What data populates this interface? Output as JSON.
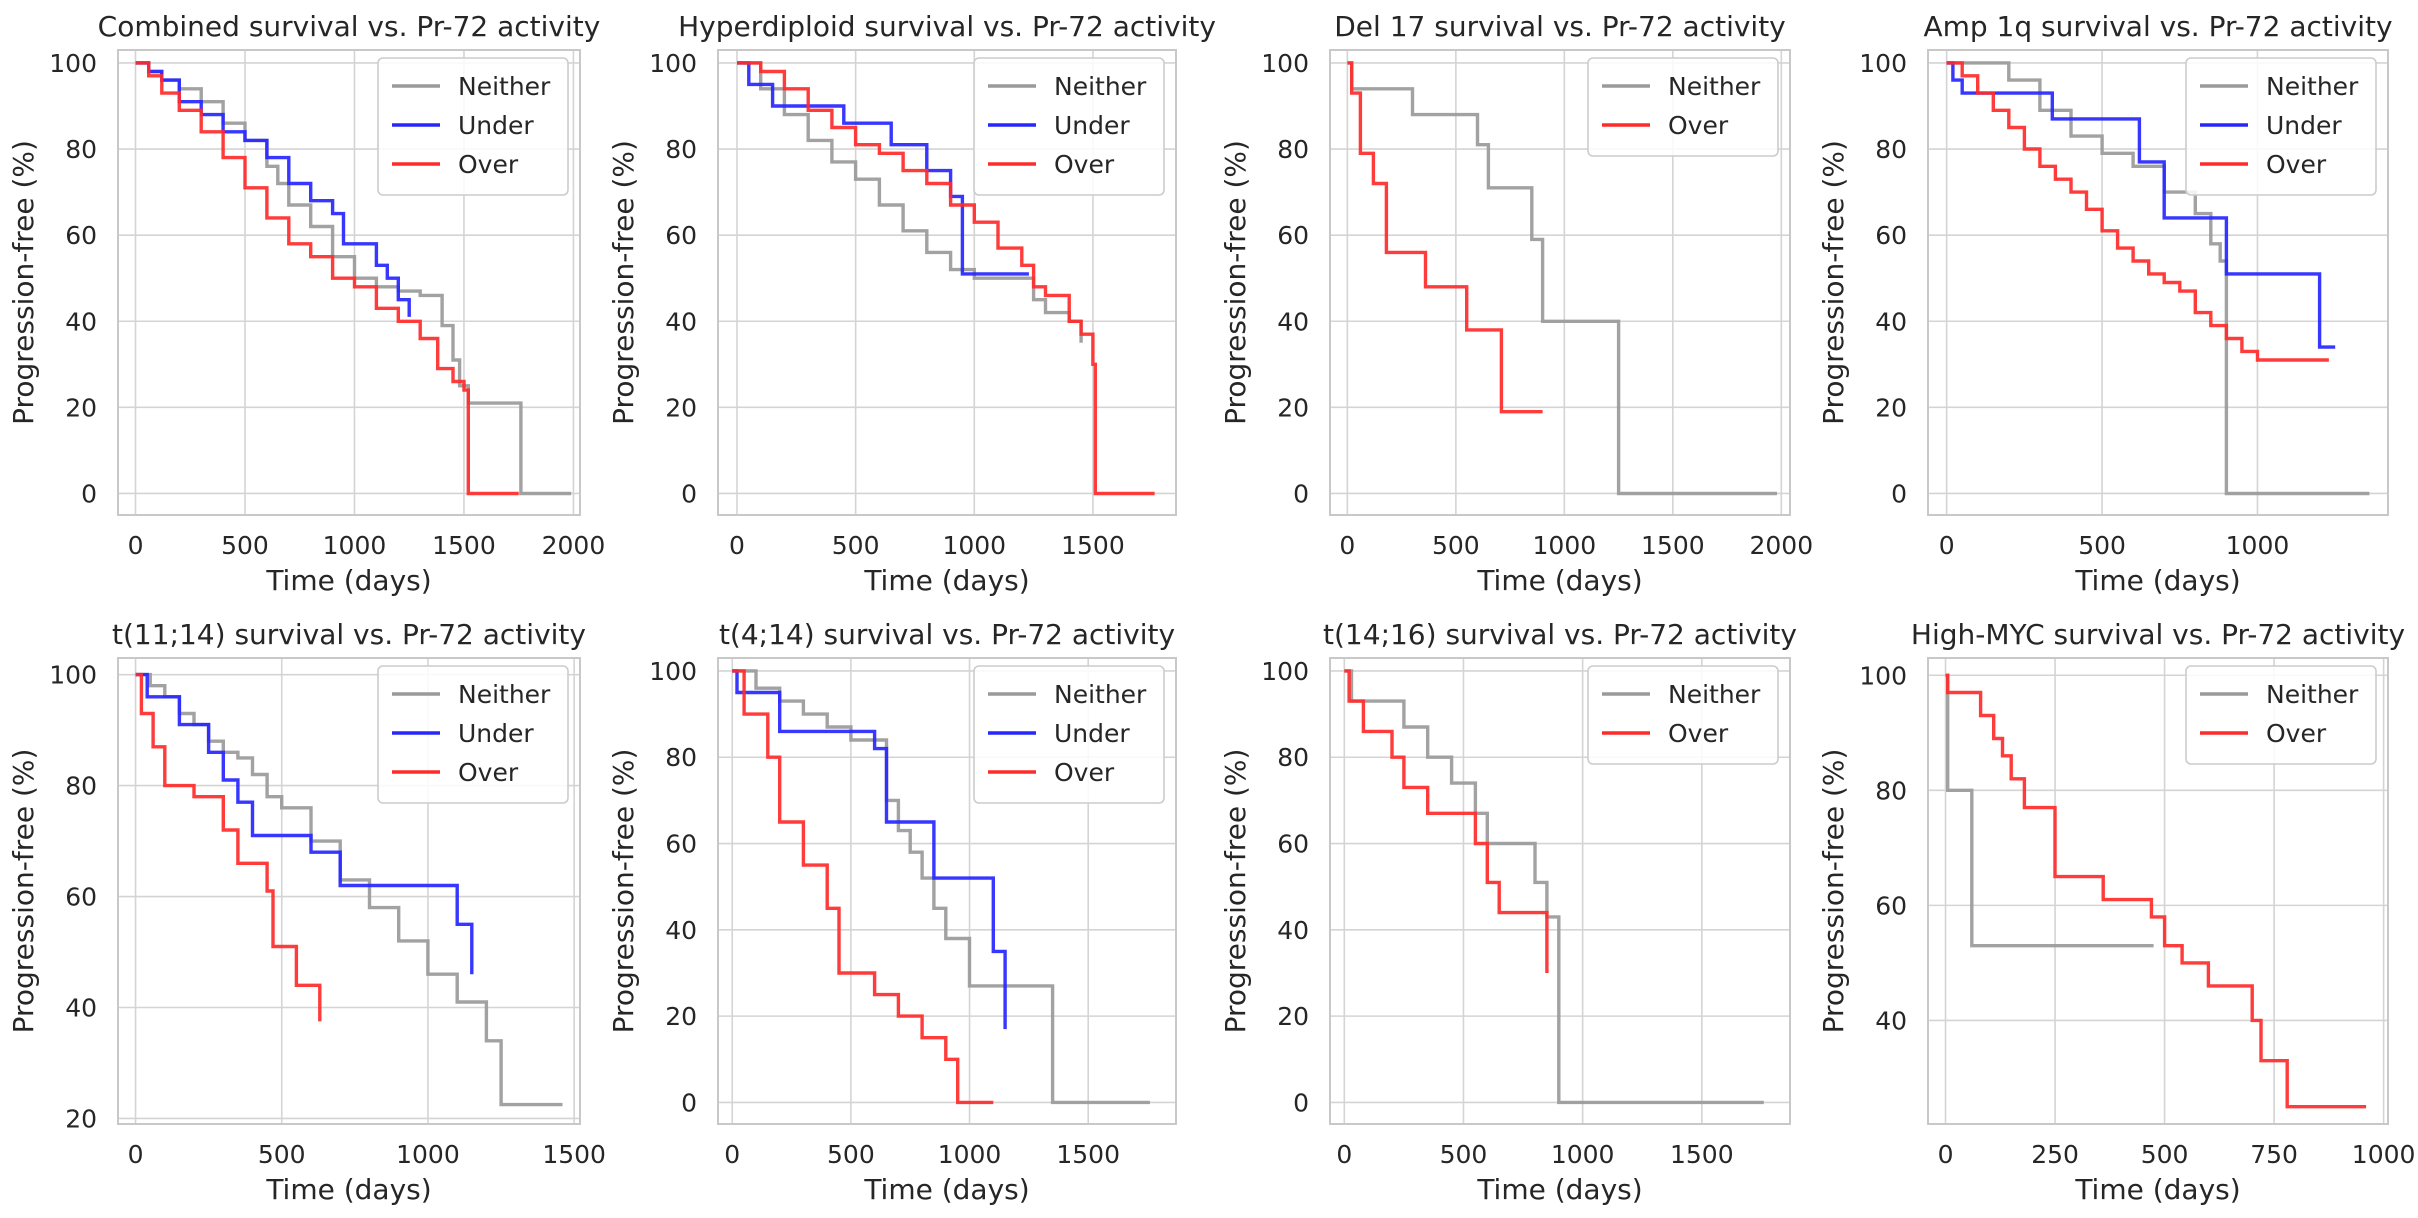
{
  "figure": {
    "colors": {
      "Neither": "#9a9a9a",
      "Under": "#2626ff",
      "Over": "#ff2b2b",
      "grid": "#d4d4d4",
      "frame": "#c8c8c8"
    }
  },
  "chart_data": [
    {
      "type": "line",
      "step": true,
      "title": "Combined survival vs. Pr-72 activity",
      "xlabel": "Time (days)",
      "ylabel": "Progression-free (%)",
      "xlim": [
        -80,
        2030
      ],
      "ylim": [
        -5,
        103
      ],
      "xticks": [
        0,
        500,
        1000,
        1500,
        2000
      ],
      "yticks": [
        0,
        20,
        40,
        60,
        80,
        100
      ],
      "legend": [
        "Neither",
        "Under",
        "Over"
      ],
      "series": [
        {
          "name": "Neither",
          "x": [
            0,
            60,
            120,
            200,
            300,
            400,
            500,
            600,
            650,
            700,
            800,
            900,
            1000,
            1100,
            1200,
            1300,
            1400,
            1450,
            1480,
            1520,
            1760,
            1760,
            1990
          ],
          "y": [
            100,
            98,
            96,
            94,
            91,
            86,
            82,
            76,
            72,
            67,
            62,
            55,
            50,
            48,
            47,
            46,
            39,
            31,
            25,
            21,
            21,
            0,
            0
          ]
        },
        {
          "name": "Under",
          "x": [
            0,
            60,
            120,
            200,
            300,
            400,
            500,
            600,
            700,
            800,
            900,
            950,
            1100,
            1150,
            1200,
            1250
          ],
          "y": [
            100,
            98,
            96,
            91,
            88,
            84,
            82,
            78,
            72,
            68,
            65,
            58,
            53,
            50,
            45,
            41
          ]
        },
        {
          "name": "Over",
          "x": [
            0,
            60,
            120,
            200,
            300,
            400,
            500,
            600,
            700,
            800,
            900,
            1000,
            1100,
            1200,
            1300,
            1380,
            1450,
            1500,
            1520,
            1520,
            1750
          ],
          "y": [
            100,
            97,
            93,
            89,
            84,
            78,
            71,
            64,
            58,
            55,
            50,
            48,
            43,
            40,
            36,
            29,
            26,
            24,
            24,
            0,
            0
          ]
        }
      ]
    },
    {
      "type": "line",
      "step": true,
      "title": "Hyperdiploid survival vs. Pr-72 activity",
      "xlabel": "Time (days)",
      "ylabel": "Progression-free (%)",
      "xlim": [
        -80,
        1850
      ],
      "ylim": [
        -5,
        103
      ],
      "xticks": [
        0,
        500,
        1000,
        1500
      ],
      "yticks": [
        0,
        20,
        40,
        60,
        80,
        100
      ],
      "legend": [
        "Neither",
        "Under",
        "Over"
      ],
      "series": [
        {
          "name": "Neither",
          "x": [
            0,
            100,
            200,
            300,
            400,
            500,
            600,
            700,
            800,
            900,
            1000,
            1100,
            1200,
            1250,
            1300,
            1400,
            1450
          ],
          "y": [
            100,
            94,
            88,
            82,
            77,
            73,
            67,
            61,
            56,
            52,
            50,
            50,
            50,
            45,
            42,
            40,
            35
          ]
        },
        {
          "name": "Under",
          "x": [
            0,
            50,
            150,
            300,
            450,
            650,
            800,
            900,
            950,
            1230
          ],
          "y": [
            100,
            95,
            90,
            90,
            86,
            81,
            75,
            69,
            51,
            51
          ]
        },
        {
          "name": "Over",
          "x": [
            0,
            100,
            200,
            300,
            400,
            500,
            600,
            700,
            800,
            900,
            1000,
            1100,
            1200,
            1250,
            1300,
            1400,
            1450,
            1500,
            1510,
            1510,
            1760
          ],
          "y": [
            100,
            98,
            94,
            89,
            85,
            81,
            79,
            75,
            72,
            67,
            63,
            57,
            53,
            48,
            46,
            40,
            37,
            30,
            23,
            0,
            0
          ]
        }
      ]
    },
    {
      "type": "line",
      "step": true,
      "title": "Del 17 survival vs. Pr-72 activity",
      "xlabel": "Time (days)",
      "ylabel": "Progression-free (%)",
      "xlim": [
        -80,
        2040
      ],
      "ylim": [
        -5,
        103
      ],
      "xticks": [
        0,
        500,
        1000,
        1500,
        2000
      ],
      "yticks": [
        0,
        20,
        40,
        60,
        80,
        100
      ],
      "legend": [
        "Neither",
        "Over"
      ],
      "series": [
        {
          "name": "Neither",
          "x": [
            0,
            20,
            120,
            300,
            600,
            650,
            850,
            900,
            1250,
            1250,
            1980
          ],
          "y": [
            100,
            94,
            94,
            88,
            81,
            71,
            59,
            40,
            40,
            0,
            0
          ]
        },
        {
          "name": "Over",
          "x": [
            0,
            20,
            60,
            120,
            180,
            360,
            550,
            710,
            900
          ],
          "y": [
            100,
            93,
            79,
            72,
            56,
            48,
            38,
            19,
            19
          ]
        }
      ]
    },
    {
      "type": "line",
      "step": true,
      "title": "Amp 1q survival vs. Pr-72 activity",
      "xlabel": "Time (days)",
      "ylabel": "Progression-free (%)",
      "xlim": [
        -60,
        1420
      ],
      "ylim": [
        -5,
        103
      ],
      "xticks": [
        0,
        500,
        1000
      ],
      "yticks": [
        0,
        20,
        40,
        60,
        80,
        100
      ],
      "legend": [
        "Neither",
        "Under",
        "Over"
      ],
      "series": [
        {
          "name": "Neither",
          "x": [
            0,
            200,
            300,
            400,
            500,
            600,
            700,
            800,
            850,
            880,
            900,
            900,
            1360
          ],
          "y": [
            100,
            96,
            89,
            83,
            79,
            76,
            70,
            65,
            58,
            54,
            40,
            0,
            0
          ]
        },
        {
          "name": "Under",
          "x": [
            0,
            20,
            50,
            150,
            340,
            620,
            700,
            900,
            1200,
            1250
          ],
          "y": [
            100,
            96,
            93,
            93,
            87,
            77,
            64,
            51,
            34,
            34
          ]
        },
        {
          "name": "Over",
          "x": [
            0,
            50,
            100,
            150,
            200,
            250,
            300,
            350,
            400,
            450,
            500,
            550,
            600,
            650,
            700,
            750,
            800,
            850,
            900,
            950,
            1000,
            1230
          ],
          "y": [
            100,
            97,
            93,
            89,
            85,
            80,
            76,
            73,
            70,
            66,
            61,
            57,
            54,
            51,
            49,
            47,
            42,
            39,
            36,
            33,
            31,
            31
          ]
        }
      ]
    },
    {
      "type": "line",
      "step": true,
      "title": "t(11;14) survival vs. Pr-72 activity",
      "xlabel": "Time (days)",
      "ylabel": "Progression-free (%)",
      "xlim": [
        -60,
        1520
      ],
      "ylim": [
        19,
        103
      ],
      "xticks": [
        0,
        500,
        1000,
        1500
      ],
      "yticks": [
        20,
        40,
        60,
        80,
        100
      ],
      "legend": [
        "Neither",
        "Under",
        "Over"
      ],
      "series": [
        {
          "name": "Neither",
          "x": [
            0,
            50,
            100,
            150,
            200,
            250,
            300,
            350,
            400,
            450,
            500,
            600,
            700,
            800,
            900,
            1000,
            1100,
            1200,
            1250,
            1460
          ],
          "y": [
            100,
            98,
            96,
            93,
            91,
            88,
            86,
            85,
            82,
            78,
            76,
            70,
            63,
            58,
            52,
            46,
            41,
            34,
            22.5,
            22.5
          ]
        },
        {
          "name": "Under",
          "x": [
            0,
            40,
            150,
            250,
            300,
            350,
            400,
            500,
            600,
            700,
            1100,
            1150
          ],
          "y": [
            100,
            96,
            91,
            86,
            81,
            77,
            71,
            71,
            68,
            62,
            55,
            46
          ]
        },
        {
          "name": "Over",
          "x": [
            0,
            20,
            60,
            100,
            200,
            300,
            350,
            450,
            470,
            550,
            630
          ],
          "y": [
            100,
            93,
            87,
            80,
            78,
            72,
            66,
            61,
            51,
            44,
            37.5
          ]
        }
      ]
    },
    {
      "type": "line",
      "step": true,
      "title": "t(4;14) survival vs. Pr-72 activity",
      "xlabel": "Time (days)",
      "ylabel": "Progression-free (%)",
      "xlim": [
        -60,
        1870
      ],
      "ylim": [
        -5,
        103
      ],
      "xticks": [
        0,
        500,
        1000,
        1500
      ],
      "yticks": [
        0,
        20,
        40,
        60,
        80,
        100
      ],
      "legend": [
        "Neither",
        "Under",
        "Over"
      ],
      "series": [
        {
          "name": "Neither",
          "x": [
            0,
            100,
            200,
            300,
            400,
            500,
            600,
            650,
            700,
            750,
            800,
            850,
            900,
            1000,
            1350,
            1350,
            1760
          ],
          "y": [
            100,
            96,
            93,
            90,
            87,
            84,
            84,
            70,
            63,
            58,
            52,
            45,
            38,
            27,
            27,
            0,
            0
          ]
        },
        {
          "name": "Under",
          "x": [
            0,
            20,
            200,
            500,
            600,
            650,
            850,
            1100,
            1150
          ],
          "y": [
            100,
            95,
            86,
            86,
            82,
            65,
            52,
            35,
            17
          ]
        },
        {
          "name": "Over",
          "x": [
            0,
            50,
            150,
            200,
            300,
            400,
            450,
            600,
            700,
            800,
            900,
            950,
            1100
          ],
          "y": [
            100,
            90,
            80,
            65,
            55,
            45,
            30,
            25,
            20,
            15,
            10,
            0,
            0
          ]
        }
      ]
    },
    {
      "type": "line",
      "step": true,
      "title": "t(14;16) survival vs. Pr-72 activity",
      "xlabel": "Time (days)",
      "ylabel": "Progression-free (%)",
      "xlim": [
        -60,
        1870
      ],
      "ylim": [
        -5,
        103
      ],
      "xticks": [
        0,
        500,
        1000,
        1500
      ],
      "yticks": [
        0,
        20,
        40,
        60,
        80,
        100
      ],
      "legend": [
        "Neither",
        "Over"
      ],
      "series": [
        {
          "name": "Neither",
          "x": [
            0,
            30,
            250,
            350,
            450,
            550,
            600,
            800,
            850,
            900,
            900,
            1760
          ],
          "y": [
            100,
            93,
            87,
            80,
            74,
            67,
            60,
            51,
            43,
            0,
            0,
            0
          ]
        },
        {
          "name": "Over",
          "x": [
            0,
            20,
            80,
            200,
            250,
            350,
            550,
            600,
            650,
            850
          ],
          "y": [
            100,
            93,
            86,
            80,
            73,
            67,
            60,
            51,
            44,
            30
          ]
        }
      ]
    },
    {
      "type": "line",
      "step": true,
      "title": "High-MYC survival vs. Pr-72 activity",
      "xlabel": "Time (days)",
      "ylabel": "Progression-free (%)",
      "xlim": [
        -40,
        1010
      ],
      "ylim": [
        22,
        103
      ],
      "xticks": [
        0,
        250,
        500,
        750,
        1000
      ],
      "yticks": [
        40,
        60,
        80,
        100
      ],
      "legend": [
        "Neither",
        "Over"
      ],
      "series": [
        {
          "name": "Neither",
          "x": [
            0,
            5,
            60,
            475
          ],
          "y": [
            100,
            80,
            53,
            53
          ]
        },
        {
          "name": "Over",
          "x": [
            0,
            5,
            80,
            110,
            130,
            150,
            180,
            250,
            360,
            470,
            500,
            540,
            600,
            700,
            720,
            780,
            960
          ],
          "y": [
            100,
            97,
            93,
            89,
            86,
            82,
            77,
            65,
            61,
            58,
            53,
            50,
            46,
            40,
            33,
            25,
            25
          ]
        }
      ]
    }
  ]
}
